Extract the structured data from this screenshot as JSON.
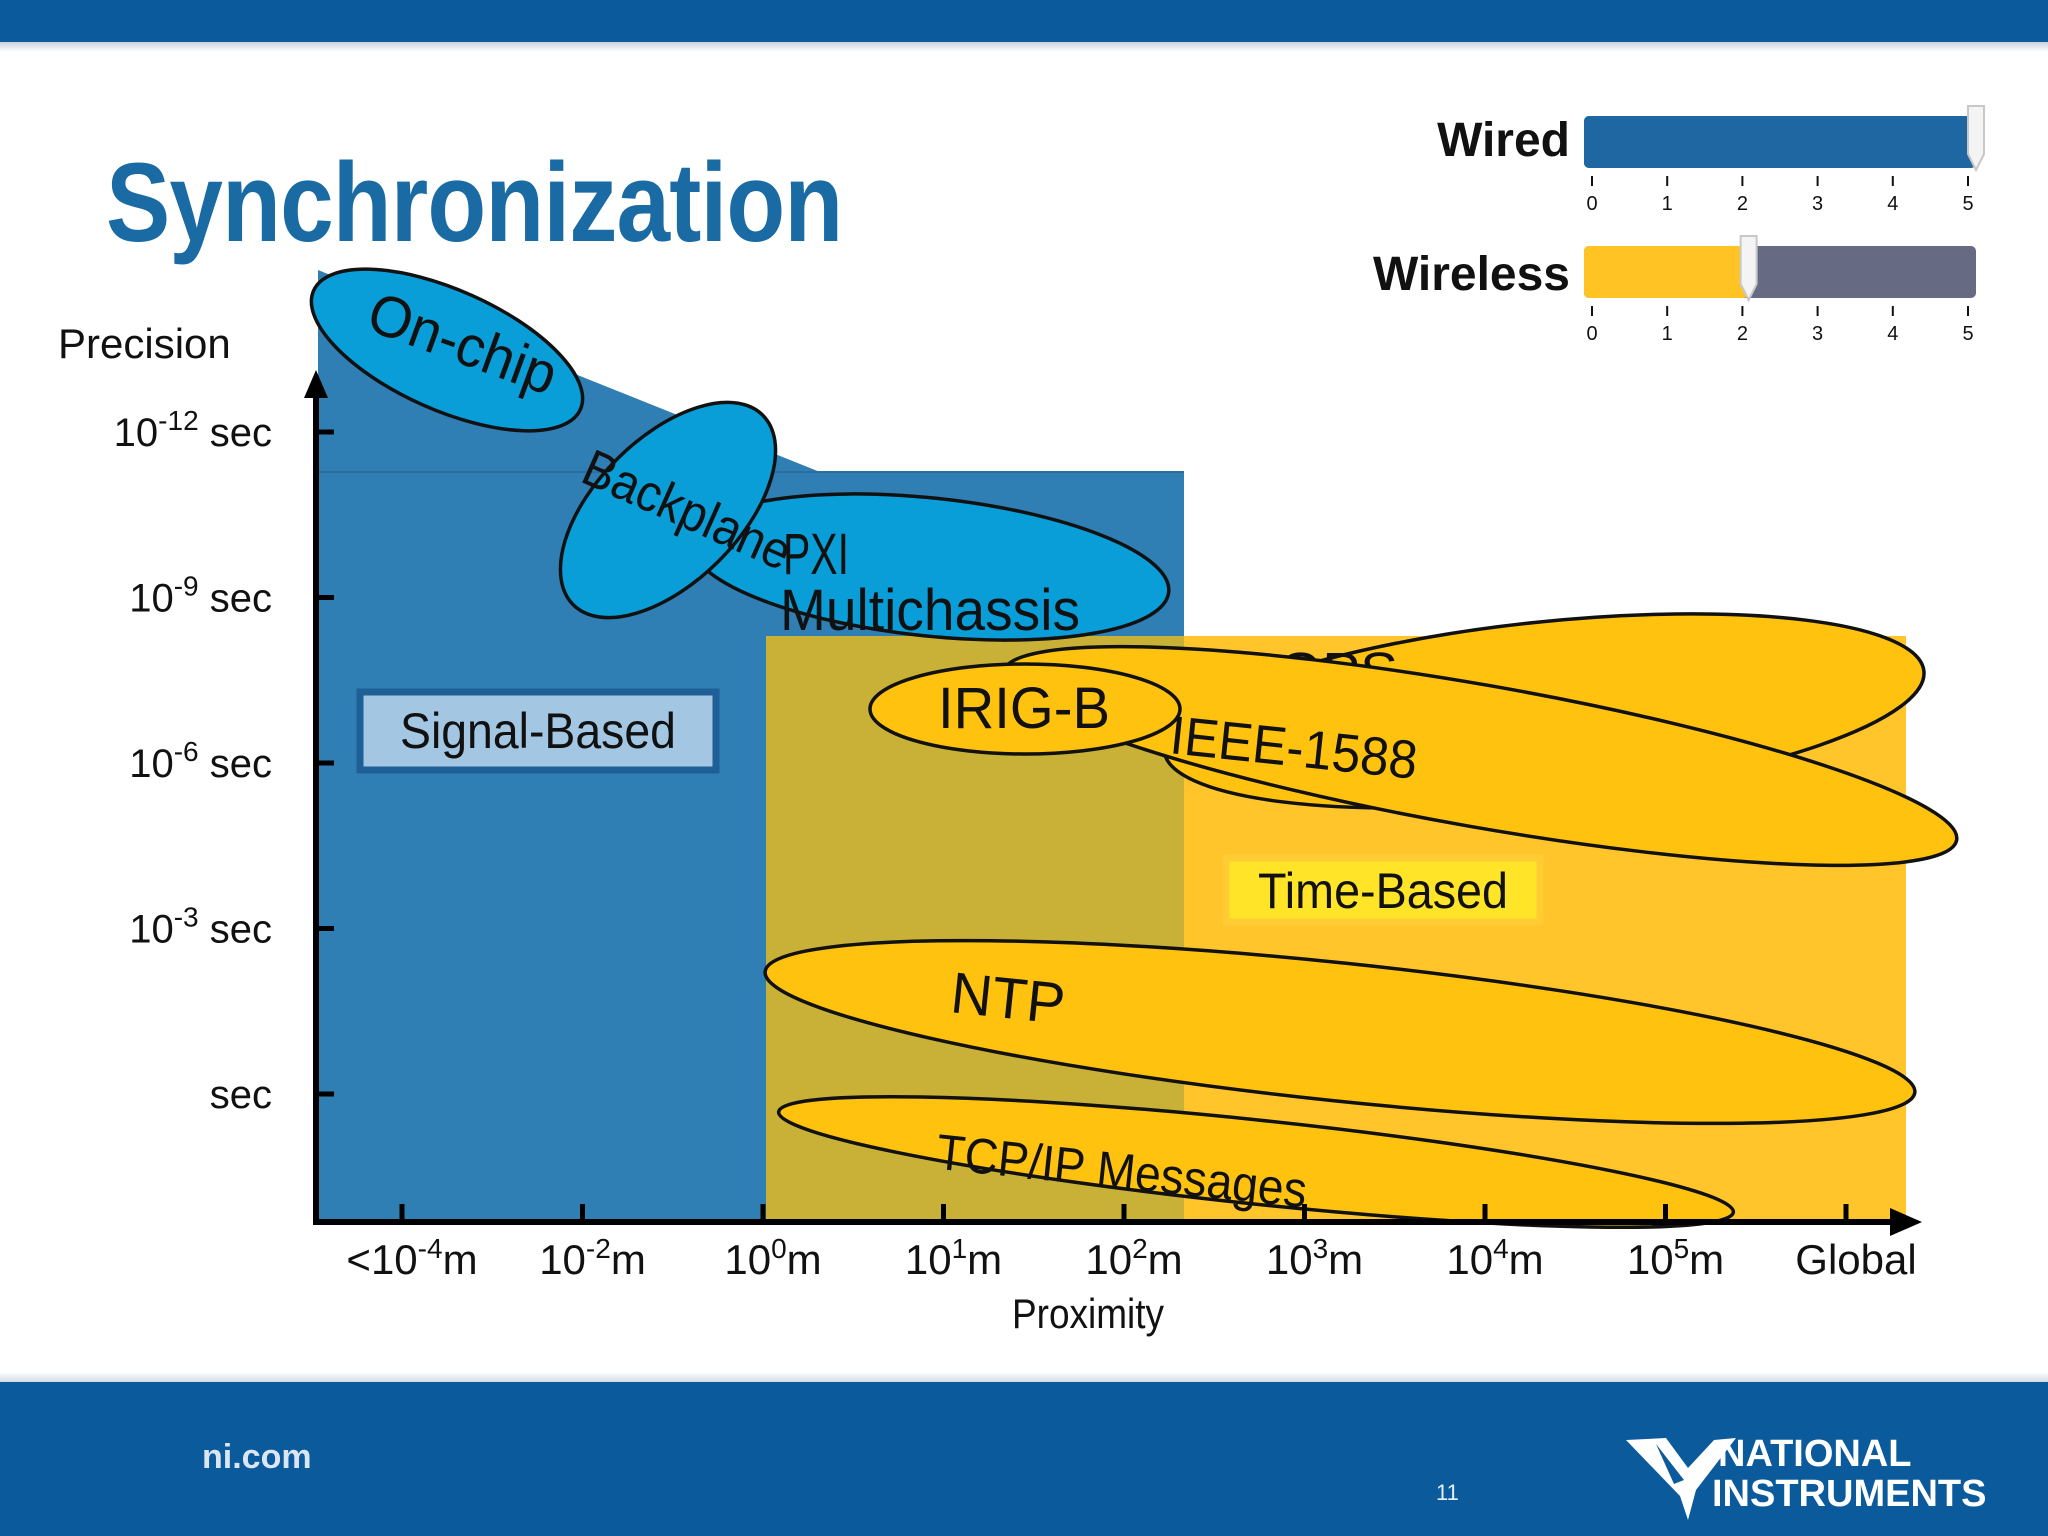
{
  "slide": {
    "title": "Synchronization",
    "footer_left": "ni.com",
    "page_number": "11",
    "logo_line1": "NATIONAL",
    "logo_line2": "INSTRUMENTS"
  },
  "legend": [
    {
      "label": "Wired",
      "value": 5,
      "max": 5,
      "fill_color": "#1f67a2",
      "rest_color": "#1f67a2",
      "ticks": [
        "0",
        "1",
        "2",
        "3",
        "4",
        "5"
      ]
    },
    {
      "label": "Wireless",
      "value": 2.1,
      "max": 5,
      "fill_color": "#ffc423",
      "rest_color": "#676a83",
      "ticks": [
        "0",
        "1",
        "2",
        "3",
        "4",
        "5"
      ]
    }
  ],
  "chart_data": {
    "type": "area",
    "ylabel": "Precision",
    "xlabel": "Proximity",
    "y_ticks": [
      {
        "base": "10",
        "exp": "-12",
        "unit": " sec"
      },
      {
        "base": "10",
        "exp": "-9",
        "unit": " sec"
      },
      {
        "base": "10",
        "exp": "-6",
        "unit": " sec"
      },
      {
        "base": "10",
        "exp": "-3",
        "unit": " sec"
      },
      {
        "base": "",
        "exp": "",
        "unit": "sec"
      }
    ],
    "x_ticks": [
      {
        "pre": "<10",
        "exp": "-4",
        "unit": "m"
      },
      {
        "pre": "10",
        "exp": "-2",
        "unit": "m"
      },
      {
        "pre": "10",
        "exp": "0",
        "unit": "m"
      },
      {
        "pre": "10",
        "exp": "1",
        "unit": "m"
      },
      {
        "pre": "10",
        "exp": "2",
        "unit": "m"
      },
      {
        "pre": "10",
        "exp": "3",
        "unit": "m"
      },
      {
        "pre": "10",
        "exp": "4",
        "unit": "m"
      },
      {
        "pre": "10",
        "exp": "5",
        "unit": "m"
      },
      {
        "pre": "Global",
        "exp": "",
        "unit": ""
      }
    ],
    "regions": [
      {
        "label": "Signal-Based",
        "proximity_range": [
          "<10^-4 m",
          "10^2 m"
        ],
        "precision_best": "10^-12 sec",
        "color": "#2f7fb4"
      },
      {
        "label": "Time-Based",
        "proximity_range": [
          "10^0 m",
          "Global"
        ],
        "precision_best": "10^-7 sec",
        "color": "#ffc52a"
      }
    ],
    "technologies": [
      {
        "label": "On-chip",
        "fill": "#0a9ed9"
      },
      {
        "label": "Backplane",
        "fill": "#0a9ed9"
      },
      {
        "label": "PXI",
        "label2": "Multichassis",
        "fill": "#0a9ed9"
      },
      {
        "label": "GPS",
        "fill": "#ffc20e"
      },
      {
        "label": "IEEE-1588",
        "fill": "#ffc20e"
      },
      {
        "label": "IRIG-B",
        "fill": "#ffc20e"
      },
      {
        "label": "NTP",
        "fill": "#ffc20e"
      },
      {
        "label": "TCP/IP Messages",
        "fill": "#ffc20e"
      }
    ]
  }
}
